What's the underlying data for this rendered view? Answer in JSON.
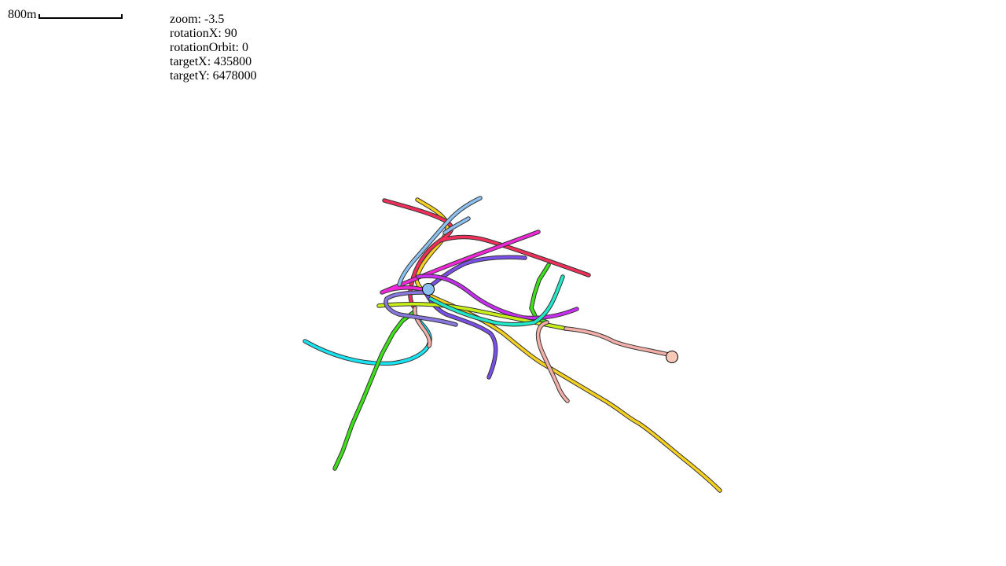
{
  "scale": {
    "label": "800m"
  },
  "camera": {
    "zoom_text": "zoom: -3.5",
    "rotationX_text": "rotationX: 90",
    "rotationOrbit_text": "rotationOrbit: 0",
    "targetX_text": "targetX: 435800",
    "targetY_text": "targetY: 6478000"
  },
  "routes": [
    {
      "name": "cyan-route",
      "color": "#19e3f0"
    },
    {
      "name": "green-route",
      "color": "#3ee01a"
    },
    {
      "name": "yellow-route",
      "color": "#f5d020"
    },
    {
      "name": "red-route",
      "color": "#f0305a"
    },
    {
      "name": "magenta-route",
      "color": "#f028d8"
    },
    {
      "name": "purple-route",
      "color": "#7a50e8"
    },
    {
      "name": "violet-route",
      "color": "#c82ef0"
    },
    {
      "name": "lime-route",
      "color": "#c8f018"
    },
    {
      "name": "teal-route",
      "color": "#20e8c8"
    },
    {
      "name": "salmon-route",
      "color": "#f4b0a8"
    },
    {
      "name": "lightblue-route",
      "color": "#8cc0f0"
    },
    {
      "name": "lavender-route",
      "color": "#8878e0"
    }
  ],
  "markers": [
    {
      "name": "blue-stop-marker",
      "color": "#8cc0f0"
    },
    {
      "name": "peach-stop-marker",
      "color": "#f8c8b8"
    }
  ]
}
